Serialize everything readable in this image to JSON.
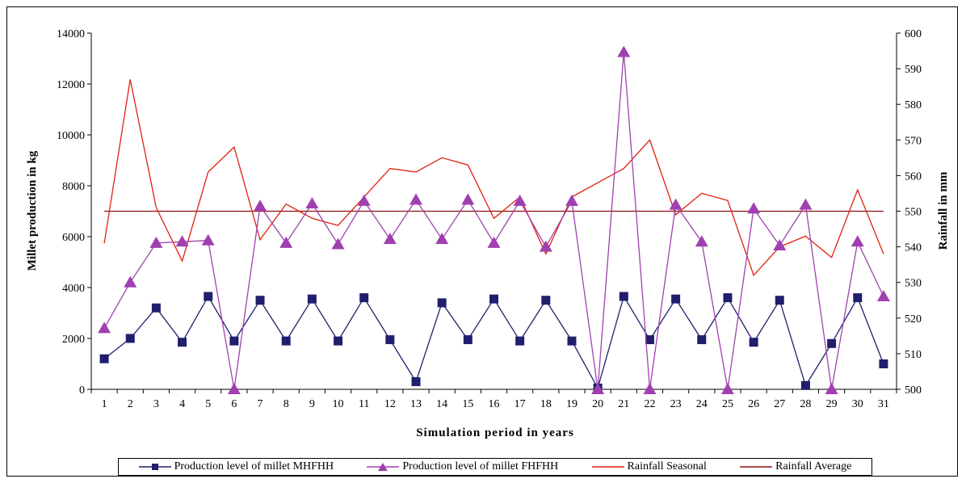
{
  "chart_data": {
    "type": "line",
    "x": [
      1,
      2,
      3,
      4,
      5,
      6,
      7,
      8,
      9,
      10,
      11,
      12,
      13,
      14,
      15,
      16,
      17,
      18,
      19,
      20,
      21,
      22,
      23,
      24,
      25,
      26,
      27,
      28,
      29,
      30,
      31
    ],
    "xlabel": "Simulation period in years",
    "ylabel": "Millet production in kg",
    "y2label": "Rainfall in mm",
    "ylim": [
      0,
      14000
    ],
    "y2lim": [
      500,
      600
    ],
    "yticks": [
      "0",
      "2000",
      "4000",
      "6000",
      "8000",
      "10000",
      "12000",
      "14000"
    ],
    "y2ticks": [
      "500",
      "510",
      "520",
      "530",
      "540",
      "550",
      "560",
      "570",
      "580",
      "590",
      "600"
    ],
    "grid": false,
    "legend_position": "bottom",
    "series": [
      {
        "name": "Production level of millet MHFHH",
        "axis": "left",
        "color": "#1f1f6e",
        "marker": "square",
        "values": [
          1200,
          2000,
          3200,
          1850,
          3650,
          1900,
          3500,
          1900,
          3550,
          1900,
          3600,
          1950,
          300,
          3400,
          1950,
          3550,
          1900,
          3500,
          1900,
          50,
          3650,
          1950,
          3550,
          1950,
          3600,
          1850,
          3500,
          150,
          1800,
          3600,
          1000
        ]
      },
      {
        "name": "Production level of millet FHFHH",
        "axis": "left",
        "color": "#a040b0",
        "marker": "triangle",
        "values": [
          2400,
          4200,
          5750,
          5800,
          5850,
          0,
          7200,
          5750,
          7300,
          5700,
          7400,
          5900,
          7450,
          5900,
          7450,
          5750,
          7400,
          5600,
          7400,
          0,
          13250,
          0,
          7250,
          5800,
          0,
          7100,
          5650,
          7250,
          0,
          5800,
          3650
        ]
      },
      {
        "name": "Rainfall Seasonal",
        "axis": "right",
        "color": "#e02010",
        "marker": "none",
        "values": [
          541,
          587,
          551,
          536,
          561,
          568,
          542,
          552,
          548,
          546,
          554,
          562,
          561,
          565,
          563,
          548,
          554,
          538,
          554,
          558,
          562,
          570,
          549,
          555,
          553,
          532,
          540,
          543,
          537,
          556,
          538
        ]
      },
      {
        "name": "Rainfall Average",
        "axis": "right",
        "color": "#8b1010",
        "marker": "none",
        "values": [
          550,
          550,
          550,
          550,
          550,
          550,
          550,
          550,
          550,
          550,
          550,
          550,
          550,
          550,
          550,
          550,
          550,
          550,
          550,
          550,
          550,
          550,
          550,
          550,
          550,
          550,
          550,
          550,
          550,
          550,
          550
        ]
      }
    ]
  }
}
